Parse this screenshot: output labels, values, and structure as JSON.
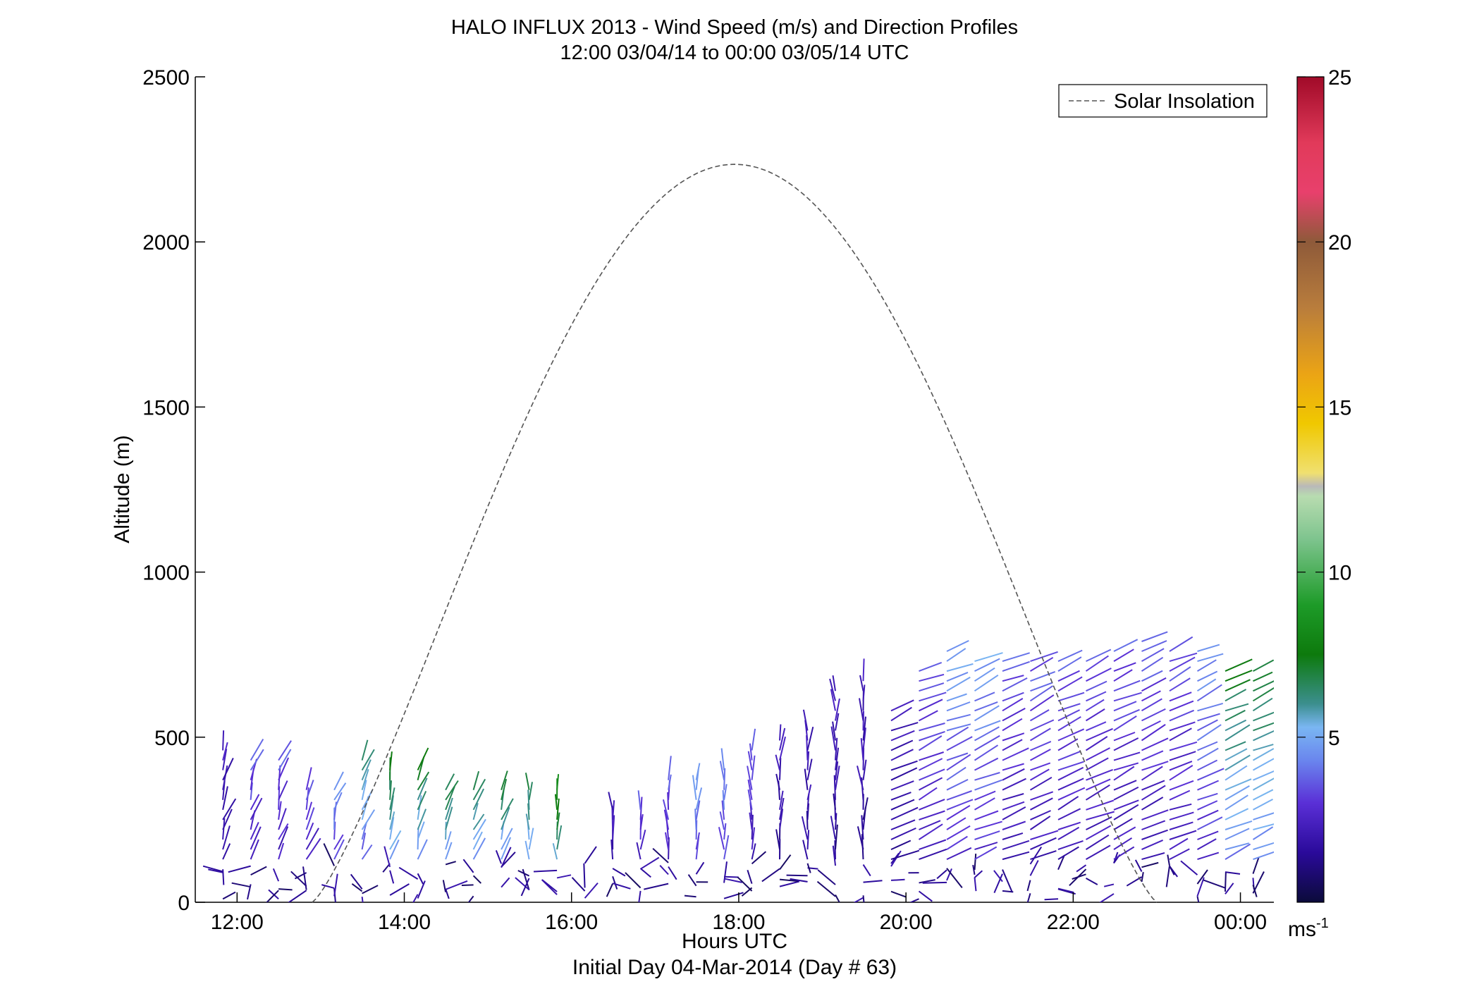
{
  "chart_data": {
    "type": "quiver",
    "title": "HALO INFLUX 2013 - Wind Speed (m/s) and Direction Profiles",
    "subtitle": "12:00 03/04/14 to 00:00 03/05/14  UTC",
    "xlabel": "Hours UTC",
    "xlabel2": "Initial Day 04-Mar-2014 (Day # 63)",
    "ylabel": "Altitude (m)",
    "xlim": [
      11.5,
      24.4
    ],
    "ylim": [
      0,
      2500
    ],
    "x_tick_values": [
      12,
      14,
      16,
      18,
      20,
      22,
      24
    ],
    "x_tick_labels": [
      "12:00",
      "14:00",
      "16:00",
      "18:00",
      "20:00",
      "22:00",
      "00:00"
    ],
    "y_ticks": [
      0,
      500,
      1000,
      1500,
      2000,
      2500
    ],
    "legend": {
      "label": "Solar Insolation",
      "placement": "top-right"
    },
    "solar_insolation": {
      "style": "dashed",
      "color": "#555555",
      "start_hour": 12.9,
      "peak_hour": 17.95,
      "end_hour": 23.0,
      "peak_altitude": 2235
    },
    "colorbar": {
      "range": [
        0,
        25
      ],
      "ticks": [
        5,
        10,
        15,
        20,
        25
      ],
      "unit_base": "ms",
      "unit_exp": "-1",
      "stops": [
        {
          "v": 0,
          "c": "#0b0b3a"
        },
        {
          "v": 1.5,
          "c": "#2a0a9a"
        },
        {
          "v": 3,
          "c": "#5a2fd6"
        },
        {
          "v": 4.3,
          "c": "#6a86ee"
        },
        {
          "v": 5.3,
          "c": "#7ab6f2"
        },
        {
          "v": 6,
          "c": "#3c8f8f"
        },
        {
          "v": 7.5,
          "c": "#0d7a0d"
        },
        {
          "v": 9,
          "c": "#1d9b28"
        },
        {
          "v": 11,
          "c": "#7ec48e"
        },
        {
          "v": 12.3,
          "c": "#b8dcb0"
        },
        {
          "v": 12.6,
          "c": "#b9b9b9"
        },
        {
          "v": 13,
          "c": "#f0e070"
        },
        {
          "v": 14.5,
          "c": "#f0c800"
        },
        {
          "v": 16,
          "c": "#eba415"
        },
        {
          "v": 18,
          "c": "#b97d3c"
        },
        {
          "v": 20,
          "c": "#8e5a3a"
        },
        {
          "v": 21.5,
          "c": "#e8406c"
        },
        {
          "v": 23,
          "c": "#e13a5a"
        },
        {
          "v": 25,
          "c": "#a00a28"
        }
      ]
    },
    "wind_barbs_summary": {
      "profile_interval_hours": 0.333,
      "first_profile_hour": 11.83,
      "last_profile_hour": 24.17,
      "boundary_layer_top_m": [
        460,
        430,
        430,
        360,
        360,
        430,
        420,
        400,
        360,
        360,
        360,
        360,
        360,
        0,
        300,
        300,
        370,
        380,
        420,
        470,
        490,
        520,
        660,
        680,
        600,
        700,
        760,
        740,
        740,
        730,
        740,
        740,
        780,
        790,
        780,
        780,
        700,
        700
      ],
      "dominant_speed_ms": [
        2,
        3,
        3,
        3,
        4,
        5,
        6,
        6,
        6,
        6,
        6,
        6,
        7,
        2,
        2,
        3,
        3,
        4,
        4,
        3,
        2,
        2,
        2,
        2,
        2,
        3,
        4,
        4,
        3,
        3,
        3,
        3,
        3,
        3,
        3,
        4,
        6,
        6
      ]
    }
  }
}
